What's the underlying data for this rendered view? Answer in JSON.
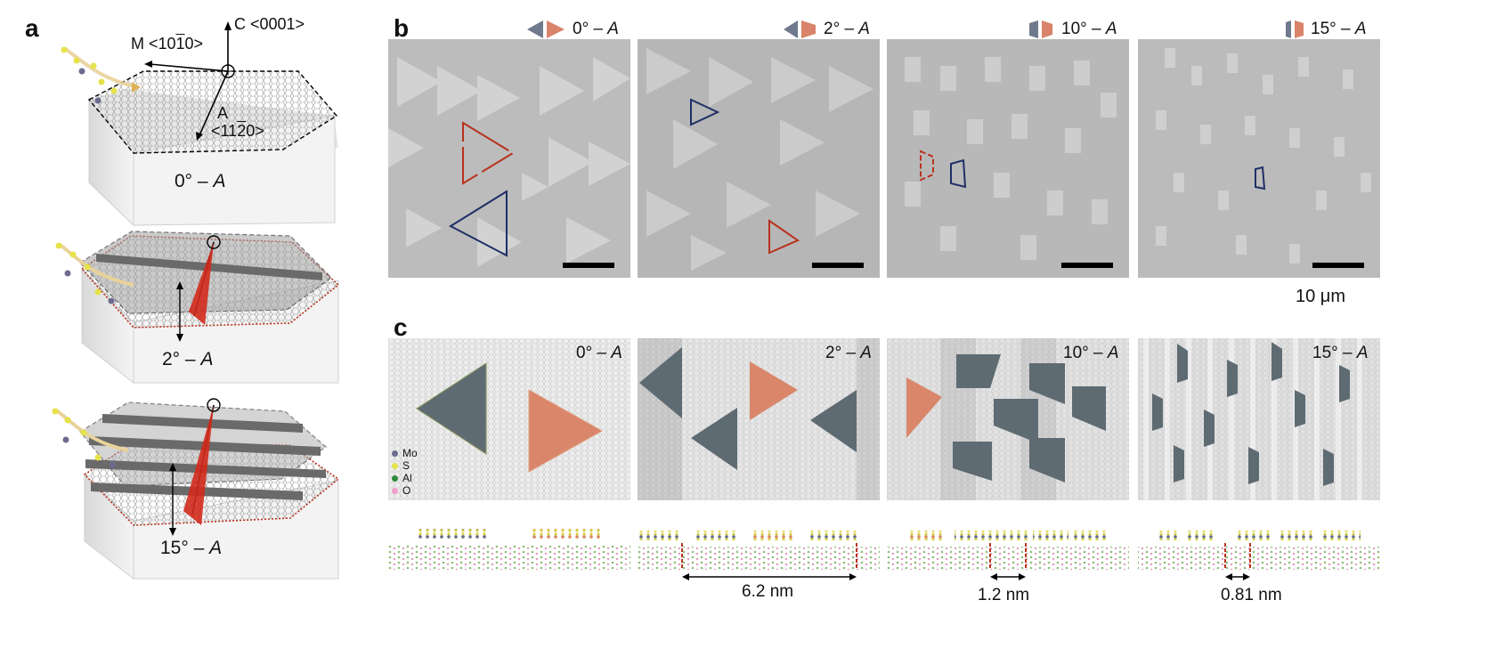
{
  "panels": {
    "a": "a",
    "b": "b",
    "c": "c"
  },
  "panel_a": {
    "axis_c": "C <0001>",
    "axis_m": "M <10",
    "axis_m_bar": "1",
    "axis_m_end": "0>",
    "axis_a": "A",
    "axis_a_dir": "<11",
    "axis_a_bar": "2",
    "axis_a_end": "0>",
    "crystals": [
      {
        "label": "0° – ",
        "italic": "A"
      },
      {
        "label": "2° – ",
        "italic": "A"
      },
      {
        "label": "15° – ",
        "italic": "A"
      }
    ]
  },
  "panel_b": {
    "images": [
      {
        "caption": "0° – ",
        "italic": "A"
      },
      {
        "caption": "2° – ",
        "italic": "A"
      },
      {
        "caption": "10° – ",
        "italic": "A"
      },
      {
        "caption": "15° – ",
        "italic": "A"
      }
    ],
    "scale_bar_label": "10 μm",
    "colors": {
      "blue": "#1f2f66",
      "red": "#b8321e",
      "grey_icon": "#6f7b8c",
      "orange_icon": "#d9836a"
    }
  },
  "panel_c": {
    "images": [
      {
        "caption": "0° – ",
        "italic": "A"
      },
      {
        "caption": "2° – ",
        "italic": "A"
      },
      {
        "caption": "10° – ",
        "italic": "A"
      },
      {
        "caption": "15° – ",
        "italic": "A"
      }
    ],
    "legend": [
      {
        "label": "Mo",
        "color": "#6c6b8f"
      },
      {
        "label": "S",
        "color": "#e6e24a"
      },
      {
        "label": "Al",
        "color": "#2f8a3a"
      },
      {
        "label": "O",
        "color": "#f0a0c8"
      }
    ],
    "measurements": [
      "6.2 nm",
      "1.2 nm",
      "0.81 nm"
    ]
  }
}
